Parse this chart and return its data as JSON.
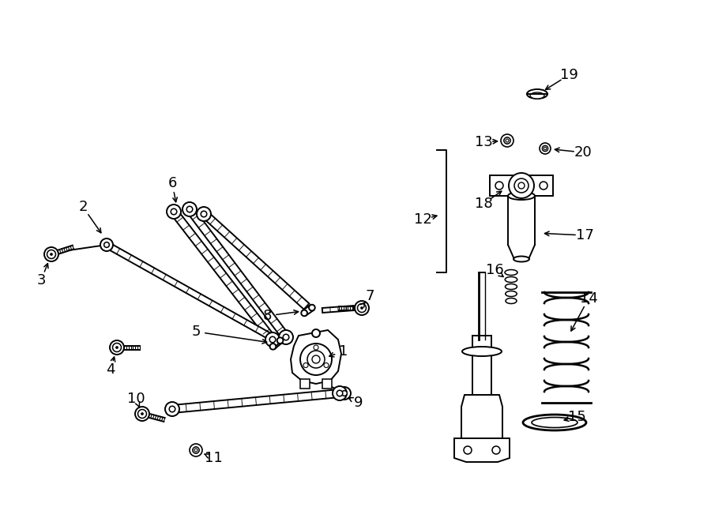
{
  "bg_color": "#ffffff",
  "line_color": "#000000",
  "label_color": "#000000",
  "fig_width": 9.0,
  "fig_height": 6.61,
  "label_font_size": 13,
  "dpi": 100
}
